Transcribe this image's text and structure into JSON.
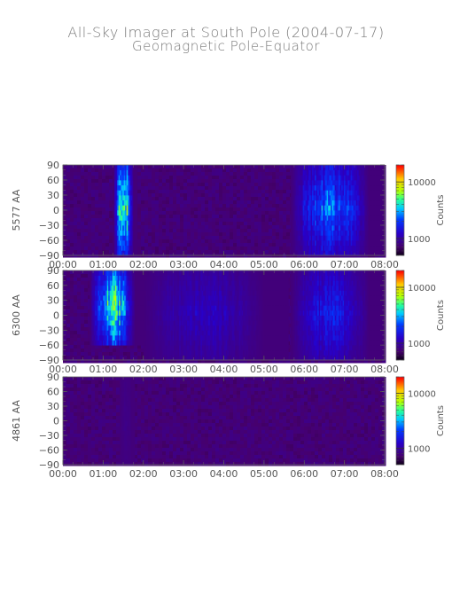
{
  "title": "All-Sky Imager at South Pole (2004-07-17)",
  "subtitle": "Geomagnetic Pole-Equator",
  "chart_data": [
    {
      "type": "heatmap",
      "ylabel": "5577 AA",
      "xlim": [
        "00:00",
        "08:00"
      ],
      "xticks": [
        "00:00",
        "01:00",
        "02:00",
        "03:00",
        "04:00",
        "05:00",
        "06:00",
        "07:00",
        "08:00"
      ],
      "ylim": [
        -90,
        90
      ],
      "yticks": [
        -90,
        -60,
        -30,
        0,
        30,
        60,
        90
      ],
      "colorbar": {
        "label": "Counts",
        "scale": "log",
        "ticks": [
          1000,
          10000
        ],
        "tick_labels": [
          "1000",
          "10000"
        ],
        "range": [
          500,
          20000
        ]
      },
      "features": [
        {
          "time_start": "01:15",
          "time_end": "01:50",
          "zenith_angle_range": [
            -90,
            90
          ],
          "peak_counts": 15000,
          "description_level": "high"
        },
        {
          "time_start": "05:40",
          "time_end": "08:00",
          "zenith_angle_range": [
            -90,
            90
          ],
          "peak_counts": 5000,
          "description_level": "moderate"
        }
      ]
    },
    {
      "type": "heatmap",
      "ylabel": "6300 AA",
      "xlim": [
        "00:00",
        "08:00"
      ],
      "xticks": [
        "00:00",
        "01:00",
        "02:00",
        "03:00",
        "04:00",
        "05:00",
        "06:00",
        "07:00",
        "08:00"
      ],
      "ylim": [
        -90,
        90
      ],
      "yticks": [
        -90,
        -60,
        -30,
        0,
        30,
        60,
        90
      ],
      "colorbar": {
        "label": "Counts",
        "scale": "log",
        "ticks": [
          1000,
          10000
        ],
        "tick_labels": [
          "1000",
          "10000"
        ],
        "range": [
          500,
          20000
        ]
      },
      "features": [
        {
          "time_start": "00:40",
          "time_end": "02:00",
          "zenith_angle_range": [
            -60,
            90
          ],
          "peak_counts": 15000,
          "description_level": "high"
        },
        {
          "time_start": "02:00",
          "time_end": "05:35",
          "zenith_angle_range": [
            -90,
            90
          ],
          "peak_counts": 1500,
          "description_level": "low"
        },
        {
          "time_start": "05:40",
          "time_end": "08:00",
          "zenith_angle_range": [
            -90,
            90
          ],
          "peak_counts": 2500,
          "description_level": "moderate"
        }
      ]
    },
    {
      "type": "heatmap",
      "ylabel": "4861 AA",
      "xlim": [
        "00:00",
        "08:00"
      ],
      "xticks": [
        "00:00",
        "01:00",
        "02:00",
        "03:00",
        "04:00",
        "05:00",
        "06:00",
        "07:00",
        "08:00"
      ],
      "ylim": [
        -90,
        90
      ],
      "yticks": [
        -90,
        -60,
        -30,
        0,
        30,
        60,
        90
      ],
      "colorbar": {
        "label": "Counts",
        "scale": "log",
        "ticks": [
          1000,
          10000
        ],
        "tick_labels": [
          "1000",
          "10000"
        ],
        "range": [
          500,
          20000
        ]
      },
      "features": [
        {
          "time_start": "01:25",
          "time_end": "01:45",
          "zenith_angle_range": [
            -90,
            90
          ],
          "peak_counts": 900,
          "description_level": "low"
        }
      ]
    }
  ]
}
